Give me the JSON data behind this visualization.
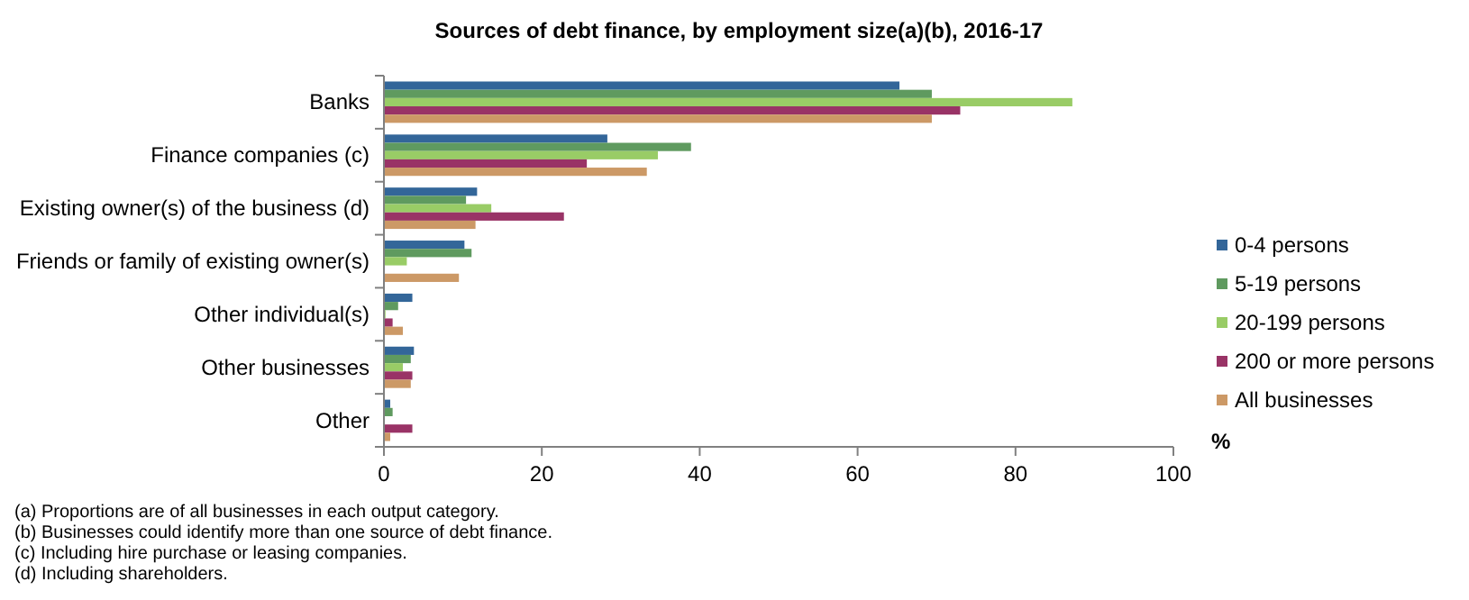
{
  "chart_data": {
    "type": "bar",
    "orientation": "horizontal",
    "title": "Sources of debt finance, by employment size(a)(b),  2016-17",
    "xlabel": "%",
    "categories": [
      "Banks",
      "Finance companies (c)",
      "Existing owner(s) of the business (d)",
      "Friends or family of existing owner(s)",
      "Other individual(s)",
      "Other businesses",
      "Other"
    ],
    "series": [
      {
        "name": "0-4 persons",
        "color": "#336699",
        "values": [
          65.3,
          28.3,
          11.8,
          10.2,
          3.6,
          3.8,
          0.8
        ]
      },
      {
        "name": "5-19 persons",
        "color": "#5f9a5f",
        "values": [
          69.4,
          38.9,
          10.4,
          11.1,
          1.8,
          3.4,
          1.1
        ]
      },
      {
        "name": "20-199 persons",
        "color": "#99cc66",
        "values": [
          87.2,
          34.7,
          13.6,
          2.9,
          0.2,
          2.4,
          0.1
        ]
      },
      {
        "name": "200 or more persons",
        "color": "#993366",
        "values": [
          73.0,
          25.7,
          22.8,
          null,
          1.1,
          3.6,
          3.6
        ]
      },
      {
        "name": "All businesses",
        "color": "#cc9966",
        "values": [
          69.4,
          33.3,
          11.6,
          9.5,
          2.4,
          3.4,
          0.8
        ]
      }
    ],
    "xlim": [
      0,
      100
    ],
    "xticks": [
      0,
      20,
      40,
      60,
      80,
      100
    ],
    "grid": false,
    "legend": "right",
    "annotations": [
      "(a) Proportions are of all businesses in each output category.",
      "(b) Businesses could identify more than one source of debt finance.",
      "(c) Including hire purchase or leasing companies.",
      "(d) Including shareholders."
    ]
  }
}
